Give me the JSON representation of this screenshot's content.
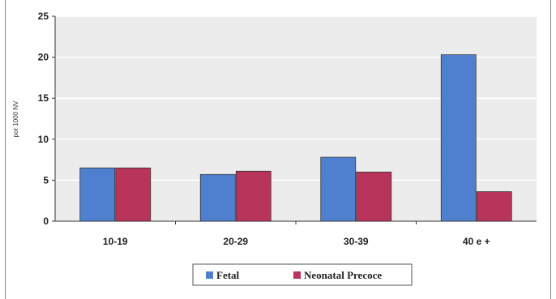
{
  "chart_data": {
    "type": "bar",
    "title": "",
    "xlabel": "",
    "ylabel": "por 1000 NV",
    "ylim": [
      0,
      25
    ],
    "yticks": [
      0,
      5,
      10,
      15,
      20,
      25
    ],
    "grid": true,
    "legend_position": "bottom",
    "categories": [
      "10-19",
      "20-29",
      "30-39",
      "40 e +"
    ],
    "series": [
      {
        "name": "Fetal",
        "values": [
          6.5,
          5.7,
          7.8,
          20.3
        ],
        "color": "#4f7fcf"
      },
      {
        "name": "Neonatal Precoce",
        "values": [
          6.5,
          6.1,
          6.0,
          3.6
        ],
        "color": "#b8345a"
      }
    ]
  },
  "colors": {
    "plot_background": "#ececec",
    "gridline": "#ffffff"
  }
}
